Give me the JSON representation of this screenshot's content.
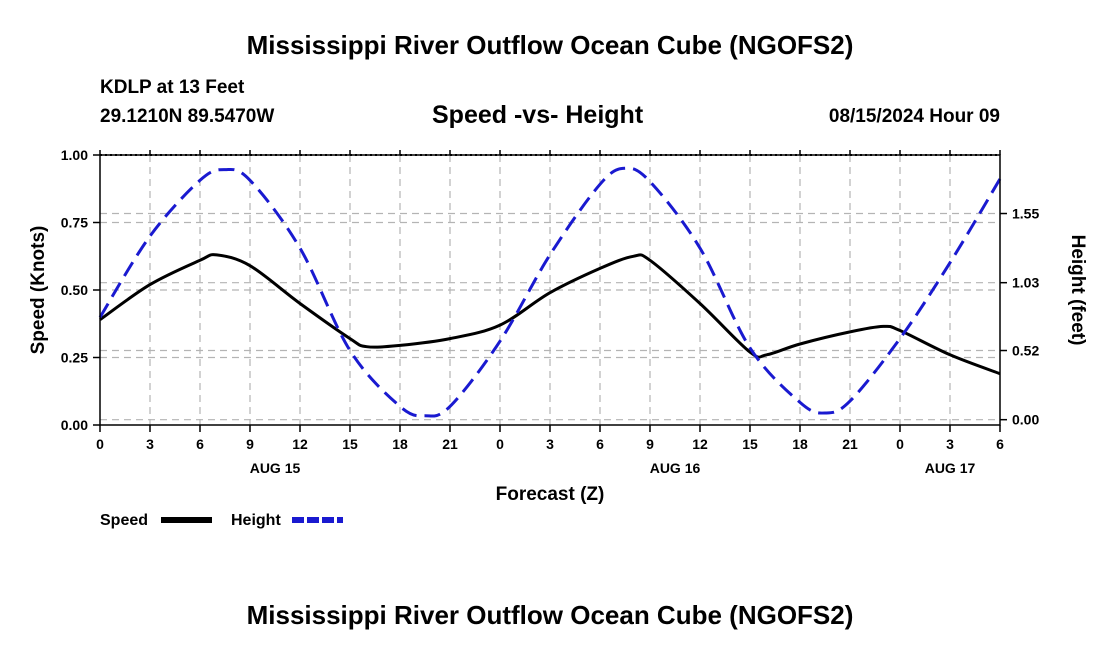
{
  "page": {
    "title": "Mississippi River Outflow Ocean Cube (NGOFS2)",
    "bottom_title": "Mississippi River Outflow Ocean Cube (NGOFS2)",
    "station": "KDLP at 13 Feet",
    "coordinates": "29.1210N  89.5470W",
    "subtitle": "Speed -vs- Height",
    "date": "08/15/2024 Hour 09"
  },
  "colors": {
    "speed": "#000000",
    "height": "#1a1ad0",
    "grid": "#b4b4b4"
  },
  "chart_data": {
    "type": "line",
    "title": "Speed -vs- Height",
    "xlabel": "Forecast (Z)",
    "ylabel": "Speed (Knots)",
    "y2label": "Height (feet)",
    "x_unit": "hours from Aug 15 00Z",
    "xlim": [
      0,
      54
    ],
    "ylim": [
      0,
      1.0
    ],
    "y2lim": [
      -0.04,
      1.99
    ],
    "x_ticks": [
      0,
      3,
      6,
      9,
      12,
      15,
      18,
      21,
      24,
      27,
      30,
      33,
      36,
      39,
      42,
      45,
      48,
      51,
      54
    ],
    "x_tick_labels": [
      "0",
      "3",
      "6",
      "9",
      "12",
      "15",
      "18",
      "21",
      "0",
      "3",
      "6",
      "9",
      "12",
      "15",
      "18",
      "21",
      "0",
      "3",
      "6"
    ],
    "day_labels": [
      {
        "x": 10.5,
        "label": "AUG 15"
      },
      {
        "x": 34.5,
        "label": "AUG 16"
      },
      {
        "x": 51,
        "label": "AUG 17"
      }
    ],
    "y_ticks": [
      0.0,
      0.25,
      0.5,
      0.75,
      1.0
    ],
    "y_tick_labels": [
      "0.00",
      "0.25",
      "0.50",
      "0.75",
      "1.00"
    ],
    "y2_ticks": [
      0.0,
      0.52,
      1.03,
      1.55
    ],
    "y2_tick_labels": [
      "0.00",
      "0.52",
      "1.03",
      "1.55"
    ],
    "series": [
      {
        "name": "Speed",
        "axis": "left",
        "style": "solid",
        "x": [
          0,
          3,
          6,
          7,
          9,
          12,
          15,
          16,
          18,
          21,
          24,
          27,
          30,
          32,
          33,
          36,
          39,
          40,
          42,
          45,
          47,
          48,
          51,
          54
        ],
        "values": [
          0.39,
          0.52,
          0.61,
          0.63,
          0.59,
          0.45,
          0.32,
          0.29,
          0.295,
          0.32,
          0.37,
          0.49,
          0.58,
          0.625,
          0.61,
          0.45,
          0.27,
          0.26,
          0.3,
          0.345,
          0.365,
          0.35,
          0.26,
          0.19
        ]
      },
      {
        "name": "Height",
        "axis": "right",
        "style": "dashed",
        "x": [
          0,
          3,
          6,
          7.5,
          9,
          12,
          15,
          18,
          19.5,
          21,
          24,
          27,
          30,
          31.5,
          33,
          36,
          39,
          42,
          43.5,
          45,
          48,
          51,
          54
        ],
        "values": [
          0.77,
          1.38,
          1.8,
          1.88,
          1.8,
          1.29,
          0.52,
          0.1,
          0.03,
          0.1,
          0.59,
          1.24,
          1.77,
          1.89,
          1.79,
          1.29,
          0.54,
          0.13,
          0.05,
          0.14,
          0.61,
          1.18,
          1.81
        ]
      }
    ],
    "legend": [
      {
        "label": "Speed",
        "style": "solid"
      },
      {
        "label": "Height",
        "style": "dashed"
      }
    ],
    "legend_position": "bottom-left",
    "grid": true
  }
}
